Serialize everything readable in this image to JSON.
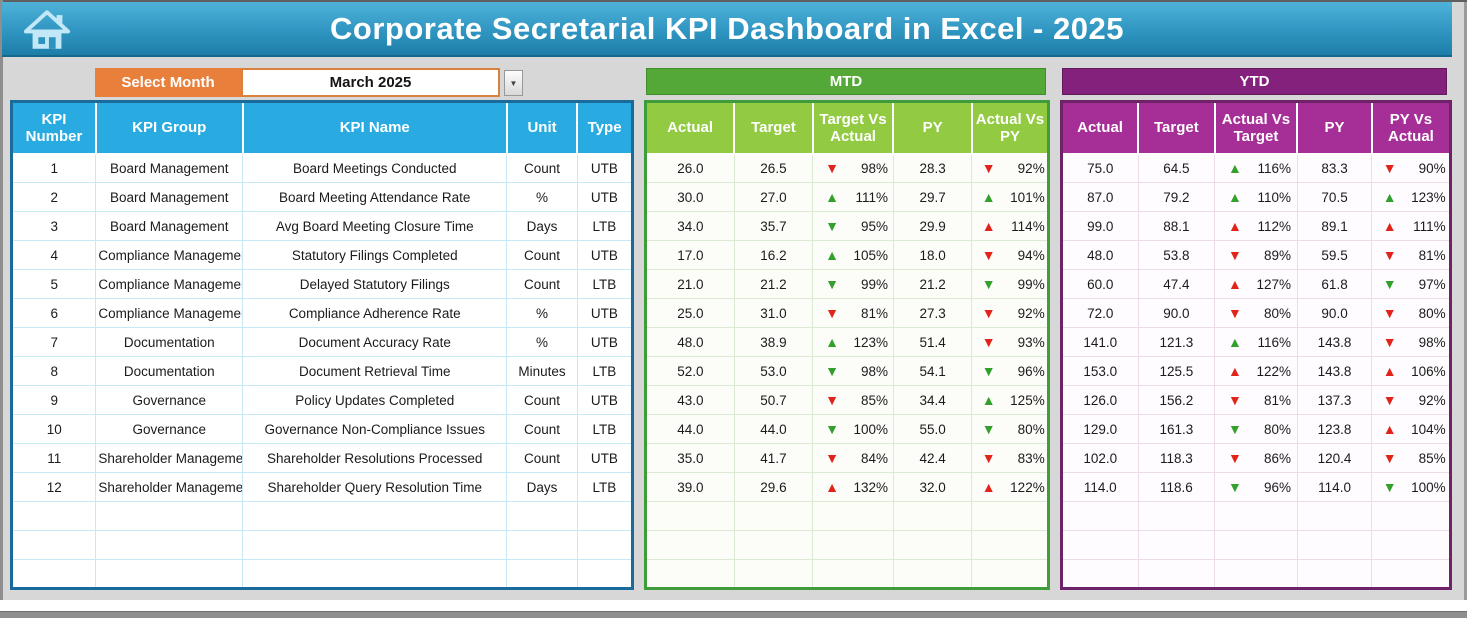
{
  "header": {
    "title": "Corporate Secretarial KPI Dashboard in Excel - 2025"
  },
  "controls": {
    "select_month_label": "Select Month",
    "selected_month": "March 2025",
    "dropdown_icon": "▼"
  },
  "kpi_table": {
    "headers": [
      "KPI Number",
      "KPI Group",
      "KPI Name",
      "Unit",
      "Type"
    ],
    "rows": [
      [
        "1",
        "Board Management",
        "Board Meetings Conducted",
        "Count",
        "UTB"
      ],
      [
        "2",
        "Board Management",
        "Board Meeting Attendance Rate",
        "%",
        "UTB"
      ],
      [
        "3",
        "Board Management",
        "Avg Board Meeting Closure Time",
        "Days",
        "LTB"
      ],
      [
        "4",
        "Compliance Management",
        "Statutory Filings Completed",
        "Count",
        "UTB"
      ],
      [
        "5",
        "Compliance Management",
        "Delayed Statutory Filings",
        "Count",
        "LTB"
      ],
      [
        "6",
        "Compliance Management",
        "Compliance Adherence Rate",
        "%",
        "UTB"
      ],
      [
        "7",
        "Documentation",
        "Document Accuracy Rate",
        "%",
        "UTB"
      ],
      [
        "8",
        "Documentation",
        "Document Retrieval Time",
        "Minutes",
        "LTB"
      ],
      [
        "9",
        "Governance",
        "Policy Updates Completed",
        "Count",
        "UTB"
      ],
      [
        "10",
        "Governance",
        "Governance Non-Compliance Issues",
        "Count",
        "LTB"
      ],
      [
        "11",
        "Shareholder Management",
        "Shareholder Resolutions Processed",
        "Count",
        "UTB"
      ],
      [
        "12",
        "Shareholder Management",
        "Shareholder Query Resolution Time",
        "Days",
        "LTB"
      ]
    ],
    "empty_rows": 3
  },
  "mtd": {
    "title": "MTD",
    "headers": [
      "Actual",
      "Target",
      "Target Vs Actual",
      "PY",
      "Actual Vs PY"
    ],
    "rows": [
      [
        "26.0",
        "26.5",
        {
          "dir": "down",
          "color": "red",
          "value": "98%"
        },
        "28.3",
        {
          "dir": "down",
          "color": "red",
          "value": "92%"
        }
      ],
      [
        "30.0",
        "27.0",
        {
          "dir": "up",
          "color": "green",
          "value": "111%"
        },
        "29.7",
        {
          "dir": "up",
          "color": "green",
          "value": "101%"
        }
      ],
      [
        "34.0",
        "35.7",
        {
          "dir": "down",
          "color": "green",
          "value": "95%"
        },
        "29.9",
        {
          "dir": "up",
          "color": "red",
          "value": "114%"
        }
      ],
      [
        "17.0",
        "16.2",
        {
          "dir": "up",
          "color": "green",
          "value": "105%"
        },
        "18.0",
        {
          "dir": "down",
          "color": "red",
          "value": "94%"
        }
      ],
      [
        "21.0",
        "21.2",
        {
          "dir": "down",
          "color": "green",
          "value": "99%"
        },
        "21.2",
        {
          "dir": "down",
          "color": "green",
          "value": "99%"
        }
      ],
      [
        "25.0",
        "31.0",
        {
          "dir": "down",
          "color": "red",
          "value": "81%"
        },
        "27.3",
        {
          "dir": "down",
          "color": "red",
          "value": "92%"
        }
      ],
      [
        "48.0",
        "38.9",
        {
          "dir": "up",
          "color": "green",
          "value": "123%"
        },
        "51.4",
        {
          "dir": "down",
          "color": "red",
          "value": "93%"
        }
      ],
      [
        "52.0",
        "53.0",
        {
          "dir": "down",
          "color": "green",
          "value": "98%"
        },
        "54.1",
        {
          "dir": "down",
          "color": "green",
          "value": "96%"
        }
      ],
      [
        "43.0",
        "50.7",
        {
          "dir": "down",
          "color": "red",
          "value": "85%"
        },
        "34.4",
        {
          "dir": "up",
          "color": "green",
          "value": "125%"
        }
      ],
      [
        "44.0",
        "44.0",
        {
          "dir": "down",
          "color": "green",
          "value": "100%"
        },
        "55.0",
        {
          "dir": "down",
          "color": "green",
          "value": "80%"
        }
      ],
      [
        "35.0",
        "41.7",
        {
          "dir": "down",
          "color": "red",
          "value": "84%"
        },
        "42.4",
        {
          "dir": "down",
          "color": "red",
          "value": "83%"
        }
      ],
      [
        "39.0",
        "29.6",
        {
          "dir": "up",
          "color": "red",
          "value": "132%"
        },
        "32.0",
        {
          "dir": "up",
          "color": "red",
          "value": "122%"
        }
      ]
    ],
    "empty_rows": 3
  },
  "ytd": {
    "title": "YTD",
    "headers": [
      "Actual",
      "Target",
      "Actual Vs Target",
      "PY",
      "PY Vs Actual"
    ],
    "rows": [
      [
        "75.0",
        "64.5",
        {
          "dir": "up",
          "color": "green",
          "value": "116%"
        },
        "83.3",
        {
          "dir": "down",
          "color": "red",
          "value": "90%"
        }
      ],
      [
        "87.0",
        "79.2",
        {
          "dir": "up",
          "color": "green",
          "value": "110%"
        },
        "70.5",
        {
          "dir": "up",
          "color": "green",
          "value": "123%"
        }
      ],
      [
        "99.0",
        "88.1",
        {
          "dir": "up",
          "color": "red",
          "value": "112%"
        },
        "89.1",
        {
          "dir": "up",
          "color": "red",
          "value": "111%"
        }
      ],
      [
        "48.0",
        "53.8",
        {
          "dir": "down",
          "color": "red",
          "value": "89%"
        },
        "59.5",
        {
          "dir": "down",
          "color": "red",
          "value": "81%"
        }
      ],
      [
        "60.0",
        "47.4",
        {
          "dir": "up",
          "color": "red",
          "value": "127%"
        },
        "61.8",
        {
          "dir": "down",
          "color": "green",
          "value": "97%"
        }
      ],
      [
        "72.0",
        "90.0",
        {
          "dir": "down",
          "color": "red",
          "value": "80%"
        },
        "90.0",
        {
          "dir": "down",
          "color": "red",
          "value": "80%"
        }
      ],
      [
        "141.0",
        "121.3",
        {
          "dir": "up",
          "color": "green",
          "value": "116%"
        },
        "143.8",
        {
          "dir": "down",
          "color": "red",
          "value": "98%"
        }
      ],
      [
        "153.0",
        "125.5",
        {
          "dir": "up",
          "color": "red",
          "value": "122%"
        },
        "143.8",
        {
          "dir": "up",
          "color": "red",
          "value": "106%"
        }
      ],
      [
        "126.0",
        "156.2",
        {
          "dir": "down",
          "color": "red",
          "value": "81%"
        },
        "137.3",
        {
          "dir": "down",
          "color": "red",
          "value": "92%"
        }
      ],
      [
        "129.0",
        "161.3",
        {
          "dir": "down",
          "color": "green",
          "value": "80%"
        },
        "123.8",
        {
          "dir": "up",
          "color": "red",
          "value": "104%"
        }
      ],
      [
        "102.0",
        "118.3",
        {
          "dir": "down",
          "color": "red",
          "value": "86%"
        },
        "120.4",
        {
          "dir": "down",
          "color": "red",
          "value": "85%"
        }
      ],
      [
        "114.0",
        "118.6",
        {
          "dir": "down",
          "color": "green",
          "value": "96%"
        },
        "114.0",
        {
          "dir": "down",
          "color": "green",
          "value": "100%"
        }
      ]
    ],
    "empty_rows": 3
  },
  "colors": {
    "titlebar_blue": "#2f96c1",
    "kpi_header_blue": "#29abe2",
    "select_month_orange": "#e8803c",
    "mtd_banner_green": "#54a837",
    "mtd_header_green": "#92cb41",
    "ytd_banner_purple": "#83217c",
    "ytd_header_purple": "#a62e97",
    "trend_green": "#33a02c",
    "trend_red": "#e2231a"
  }
}
